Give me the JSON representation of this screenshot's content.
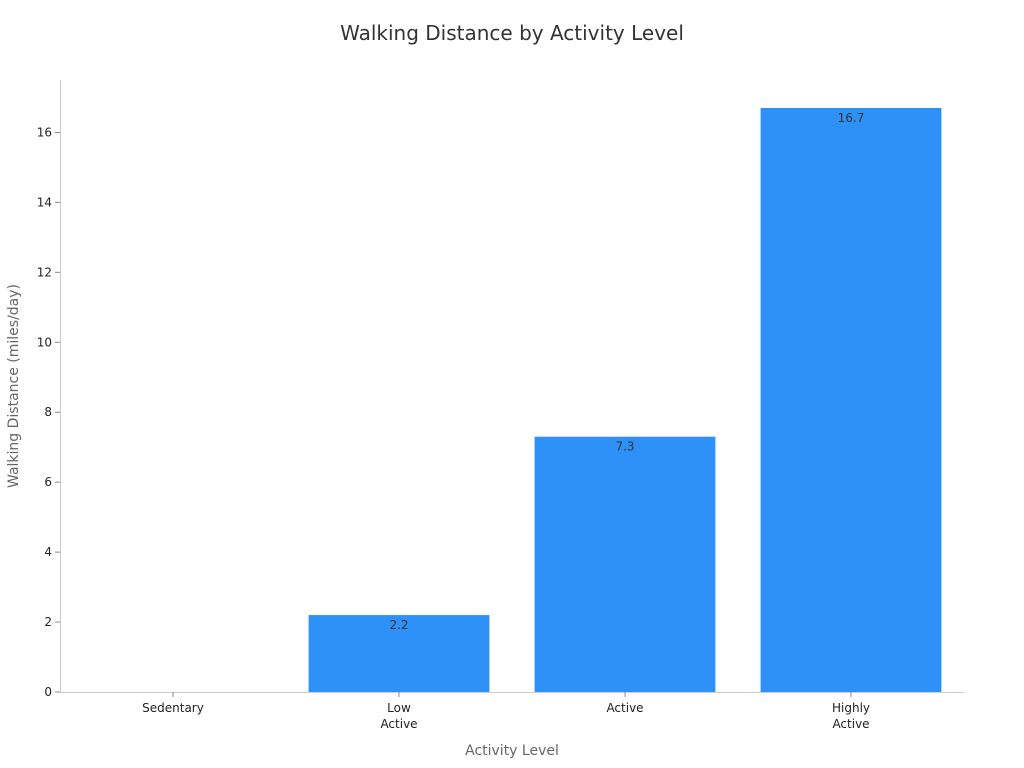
{
  "chart_data": {
    "type": "bar",
    "title": "Walking Distance by Activity Level",
    "xlabel": "Activity Level",
    "ylabel": "Walking Distance (miles/day)",
    "categories": [
      [
        "Sedentary"
      ],
      [
        "Low",
        "Active"
      ],
      [
        "Active"
      ],
      [
        "Highly",
        "Active"
      ]
    ],
    "values": [
      0,
      2.2,
      7.3,
      16.7
    ],
    "data_labels": [
      "",
      "2.2",
      "7.3",
      "16.7"
    ],
    "ylim": [
      0,
      17.5
    ],
    "yticks": [
      0,
      2,
      4,
      6,
      8,
      10,
      12,
      14,
      16
    ],
    "bar_color": "#2e91f8",
    "grid": false,
    "legend": "none"
  }
}
